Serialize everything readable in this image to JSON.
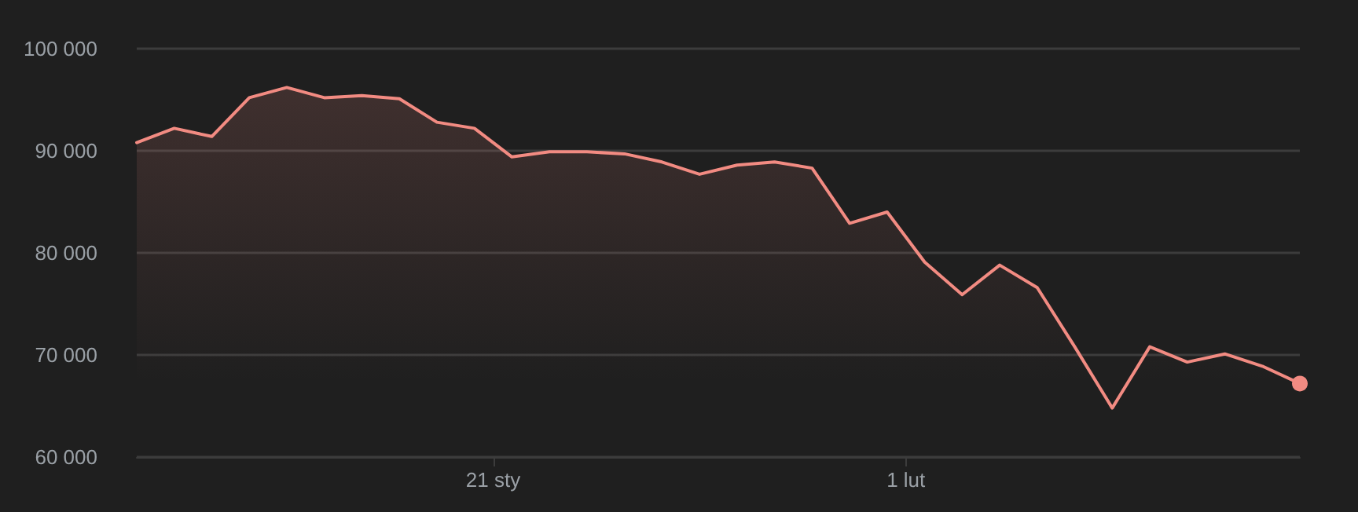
{
  "chart_data": {
    "type": "area",
    "x": [
      "--01-11T12:00",
      "--01-12T12:00",
      "--01-13T12:00",
      "--01-14T12:00",
      "--01-15T12:00",
      "--01-16T12:00",
      "--01-17T12:00",
      "--01-18T12:00",
      "--01-19T12:00",
      "--01-20T12:00",
      "--01-21T12:00",
      "--01-22T12:00",
      "--01-23T12:00",
      "--01-24T12:00",
      "--01-25T12:00",
      "--01-26T12:00",
      "--01-27T12:00",
      "--01-28T12:00",
      "--01-29T12:00",
      "--01-30T12:00",
      "--01-31T12:00",
      "--02-01T12:00",
      "--02-02T12:00",
      "--02-03T12:00",
      "--02-04T12:00",
      "--02-05T12:00",
      "--02-06T12:00",
      "--02-07T12:00",
      "--02-08T12:00",
      "--02-09T12:00",
      "--02-10T12:00",
      "--02-11T12:00"
    ],
    "series": [
      {
        "color": "#f28b82",
        "values": [
          90800,
          92200,
          91400,
          95200,
          96200,
          95200,
          95400,
          95100,
          92800,
          92200,
          89400,
          89900,
          89900,
          89700,
          88900,
          87700,
          88600,
          88900,
          88300,
          82900,
          84000,
          79100,
          75900,
          78800,
          76600,
          70800,
          64800,
          70800,
          69300,
          70100,
          68900,
          67200
        ]
      }
    ],
    "xlim": [
      "--01-11T12:00",
      "--02-11T12:00"
    ],
    "xticks": [
      {
        "value": "--01-21",
        "label": "21 sty"
      },
      {
        "value": "--02-01",
        "label": "1 lut"
      }
    ],
    "ylim": [
      60000,
      100000
    ],
    "yticks": [
      {
        "value": 60000,
        "label": "60 000"
      },
      {
        "value": 70000,
        "label": "70 000"
      },
      {
        "value": 80000,
        "label": "80 000"
      },
      {
        "value": 90000,
        "label": "90 000"
      },
      {
        "value": 100000,
        "label": "100 000"
      }
    ],
    "grid": "y",
    "marker": "none",
    "line_style": "solid"
  }
}
